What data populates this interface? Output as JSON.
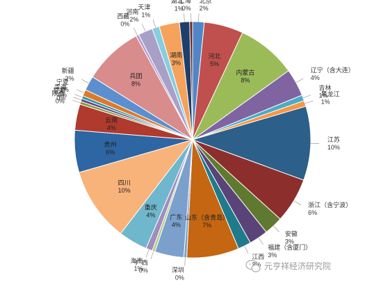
{
  "chart_data": {
    "type": "pie",
    "title": "",
    "slices": [
      {
        "name": "北京",
        "pct_label": "2%",
        "value": 1.6,
        "color": "#4f86c6",
        "inside": false
      },
      {
        "name": "河北",
        "pct_label": "5%",
        "value": 5.4,
        "color": "#c0504d",
        "inside": true
      },
      {
        "name": "内蒙古",
        "pct_label": "8%",
        "value": 8.2,
        "color": "#9bbb59",
        "inside": true
      },
      {
        "name": "辽宁（含大连）",
        "pct_label": "4%",
        "value": 3.8,
        "color": "#8064a2",
        "inside": false
      },
      {
        "name": "吉林",
        "pct_label": "1%",
        "value": 0.8,
        "color": "#4bacc6",
        "inside": false
      },
      {
        "name": "黑龙江",
        "pct_label": "1%",
        "value": 0.8,
        "color": "#f79646",
        "inside": false
      },
      {
        "name": "江苏",
        "pct_label": "10%",
        "value": 10.2,
        "color": "#2c5f8a",
        "inside": false
      },
      {
        "name": "浙江（含宁波）",
        "pct_label": "6%",
        "value": 6.2,
        "color": "#8c2f2c",
        "inside": false
      },
      {
        "name": "安徽",
        "pct_label": "3%",
        "value": 2.6,
        "color": "#5f7a30",
        "inside": false
      },
      {
        "name": "福建（含厦门）",
        "pct_label": "3%",
        "value": 2.6,
        "color": "#5a4378",
        "inside": false
      },
      {
        "name": "江西",
        "pct_label": "2%",
        "value": 1.8,
        "color": "#1f7a8c",
        "inside": false
      },
      {
        "name": "山东（含青岛）",
        "pct_label": "7%",
        "value": 7.2,
        "color": "#c46612",
        "inside": true
      },
      {
        "name": "深圳",
        "pct_label": "0%",
        "value": 0.4,
        "color": "#7ba0cc",
        "inside": false
      },
      {
        "name": "广东",
        "pct_label": "4%",
        "value": 4.0,
        "color": "#7ba0cc",
        "inside": true
      },
      {
        "name": "广西",
        "pct_label": "0%",
        "value": 0.4,
        "color": "#b7cf8a",
        "inside": false
      },
      {
        "name": "海南",
        "pct_label": "1%",
        "value": 0.9,
        "color": "#a08cbf",
        "inside": false
      },
      {
        "name": "重庆",
        "pct_label": "4%",
        "value": 4.0,
        "color": "#6fb7cc",
        "inside": true
      },
      {
        "name": "四川",
        "pct_label": "10%",
        "value": 10.2,
        "color": "#f8b37a",
        "inside": true
      },
      {
        "name": "贵州",
        "pct_label": "6%",
        "value": 5.8,
        "color": "#2e65a3",
        "inside": true
      },
      {
        "name": "云南",
        "pct_label": "4%",
        "value": 3.6,
        "color": "#b03a2e",
        "inside": true
      },
      {
        "name": "陕西",
        "pct_label": "0%",
        "value": 0.4,
        "color": "#8a9a3e",
        "inside": false
      },
      {
        "name": "甘肃",
        "pct_label": "0%",
        "value": 0.4,
        "color": "#5b4a8a",
        "inside": false
      },
      {
        "name": "青海",
        "pct_label": "0%",
        "value": 0.4,
        "color": "#2f8fa3",
        "inside": false
      },
      {
        "name": "宁夏",
        "pct_label": "1%",
        "value": 0.9,
        "color": "#dd7a2a",
        "inside": false
      },
      {
        "name": "新疆",
        "pct_label": "2%",
        "value": 2.0,
        "color": "#5b8fcf",
        "inside": false
      },
      {
        "name": "兵团",
        "pct_label": "8%",
        "value": 8.2,
        "color": "#d98c8c",
        "inside": true
      },
      {
        "name": "西藏",
        "pct_label": "0%",
        "value": 0.4,
        "color": "#b5a0d0",
        "inside": false
      },
      {
        "name": "河南",
        "pct_label": "2%",
        "value": 2.0,
        "color": "#a9a0c8",
        "inside": false
      },
      {
        "name": "天津",
        "pct_label": "1%",
        "value": 1.0,
        "color": "#87cde0",
        "inside": false
      },
      {
        "name": "湖南",
        "pct_label": "3%",
        "value": 2.8,
        "color": "#f5a25c",
        "inside": true
      },
      {
        "name": "湖北",
        "pct_label": "1%",
        "value": 1.4,
        "color": "#1f3f6b",
        "inside": false
      },
      {
        "name": "上海",
        "pct_label": "0%",
        "value": 0.4,
        "color": "#6d2a28",
        "inside": false
      }
    ]
  },
  "watermark": {
    "text": "元亨祥经济研究院",
    "icon": "wechat-icon"
  }
}
